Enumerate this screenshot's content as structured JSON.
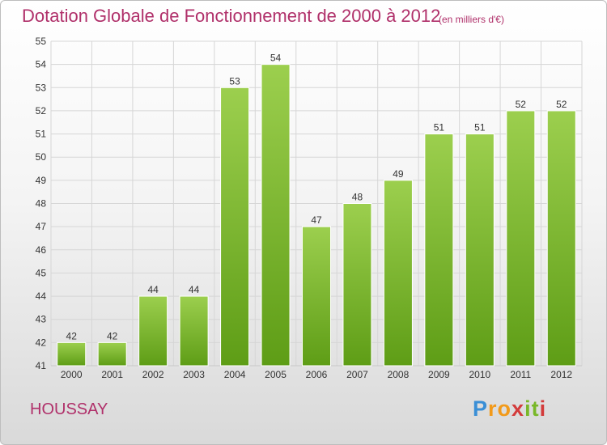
{
  "header": {
    "title": "Dotation Globale de Fonctionnement de 2000 à 2012",
    "unit": "(en milliers d'€)"
  },
  "footer": {
    "commune": "HOUSSAY",
    "logo_text": "Proxiti"
  },
  "colors": {
    "title": "#b0306a",
    "bar_top": "#9ccf4e",
    "bar_bottom": "#5e9d16",
    "grid": "#d6d6d6",
    "axis_text": "#333333"
  },
  "chart_data": {
    "type": "bar",
    "title": "Dotation Globale de Fonctionnement de 2000 à 2012",
    "subtitle": "(en milliers d'€)",
    "xlabel": "",
    "ylabel": "",
    "categories": [
      "2000",
      "2001",
      "2002",
      "2003",
      "2004",
      "2005",
      "2006",
      "2007",
      "2008",
      "2009",
      "2010",
      "2011",
      "2012"
    ],
    "values": [
      42,
      42,
      44,
      44,
      53,
      54,
      47,
      48,
      49,
      51,
      51,
      52,
      52
    ],
    "data_labels": [
      "42",
      "42",
      "44",
      "44",
      "53",
      "54",
      "47",
      "48",
      "49",
      "51",
      "51",
      "52",
      "52"
    ],
    "ylim": [
      41,
      55
    ],
    "yticks": [
      41,
      42,
      43,
      44,
      45,
      46,
      47,
      48,
      49,
      50,
      51,
      52,
      53,
      54,
      55
    ],
    "ytick_labels": [
      "41",
      "42",
      "43",
      "44",
      "45",
      "46",
      "47",
      "48",
      "49",
      "50",
      "51",
      "52",
      "53",
      "54",
      "55"
    ],
    "grid": true,
    "legend": "none"
  }
}
